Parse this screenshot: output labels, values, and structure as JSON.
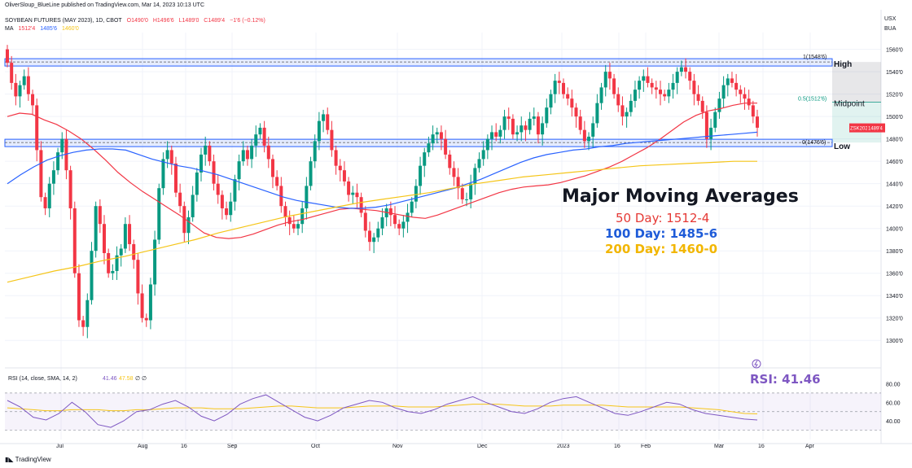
{
  "header": {
    "publisher": "OliverSloup_BlueLine published on TradingView.com, Mar 14, 2023 10:13 UTC",
    "symbol": "SOYBEAN FUTURES (MAY 2023), 1D, CBOT",
    "ohlc": {
      "o": "O1490'0",
      "h": "H1496'6",
      "l": "L1489'0",
      "c": "C1489'4",
      "chg": "−1'6 (−0.12%)"
    },
    "ma_label": "MA",
    "ma_values": [
      "1512'4",
      "1485'6",
      "1460'0"
    ]
  },
  "currency": [
    "USX",
    "BUA"
  ],
  "colors": {
    "up": "#089981",
    "down": "#f23645",
    "ma50": "#f23645",
    "ma100": "#2962ff",
    "ma200": "#f5c518",
    "rsi": "#7e57c2",
    "band": "#2962ff"
  },
  "annotations": {
    "high": "High",
    "midpoint": "Midpoint",
    "low": "Low",
    "fib_high": "1(1548'6)",
    "fib_mid": "0.5(1512'6)",
    "fib_low": "0(1476'6)",
    "last_tag": "ZSK2023",
    "last_price": "1489'4"
  },
  "overlay": {
    "title": "Major Moving Averages",
    "lines": [
      {
        "text": "50 Day: 1512-4",
        "color": "#e53935"
      },
      {
        "text": "100 Day: 1485-6",
        "color": "#1e5bd8"
      },
      {
        "text": "200 Day: 1460-0",
        "color": "#f2b600"
      }
    ],
    "rsi_text": "RSI: 41.46"
  },
  "rsi_header": {
    "label": "RSI (14, close, SMA, 14, 2)",
    "v1": "41.46",
    "v2": "47.58",
    "v3": "∅",
    "v4": "∅"
  },
  "footer": "TradingView",
  "chart_data": {
    "type": "candlestick",
    "symbol": "ZSK2023",
    "price_axis": {
      "ticks": [
        "1560'0",
        "1540'0",
        "1520'0",
        "1500'0",
        "1480'0",
        "1460'0",
        "1440'0",
        "1420'0",
        "1400'0",
        "1380'0",
        "1360'0",
        "1340'0",
        "1320'0",
        "1300'0"
      ],
      "min": 1290,
      "max": 1575
    },
    "time_axis": {
      "ticks": [
        "Jul",
        "Aug",
        "16",
        "Sep",
        "Oct",
        "Nov",
        "Dec",
        "2023",
        "16",
        "Feb",
        "Mar",
        "16",
        "Apr"
      ]
    },
    "levels": {
      "high": 1548.75,
      "midpoint": 1512.75,
      "low": 1476.75
    },
    "ma_last": {
      "ma50": 1512.5,
      "ma100": 1485.75,
      "ma200": 1460.0
    },
    "closes": [
      1548,
      1530,
      1518,
      1528,
      1536,
      1520,
      1510,
      1470,
      1428,
      1418,
      1440,
      1452,
      1468,
      1480,
      1452,
      1418,
      1360,
      1318,
      1312,
      1336,
      1380,
      1420,
      1404,
      1378,
      1360,
      1362,
      1376,
      1382,
      1404,
      1386,
      1372,
      1342,
      1320,
      1318,
      1350,
      1390,
      1436,
      1462,
      1470,
      1458,
      1432,
      1420,
      1396,
      1410,
      1430,
      1450,
      1466,
      1474,
      1460,
      1440,
      1430,
      1418,
      1412,
      1424,
      1444,
      1460,
      1470,
      1462,
      1474,
      1484,
      1490,
      1474,
      1462,
      1446,
      1438,
      1420,
      1410,
      1404,
      1400,
      1404,
      1418,
      1438,
      1460,
      1478,
      1496,
      1502,
      1488,
      1470,
      1456,
      1452,
      1442,
      1430,
      1432,
      1428,
      1414,
      1398,
      1388,
      1392,
      1400,
      1410,
      1418,
      1412,
      1404,
      1400,
      1406,
      1414,
      1424,
      1438,
      1456,
      1468,
      1476,
      1484,
      1486,
      1480,
      1466,
      1454,
      1446,
      1436,
      1426,
      1426,
      1440,
      1454,
      1462,
      1470,
      1480,
      1486,
      1482,
      1488,
      1500,
      1498,
      1484,
      1486,
      1492,
      1488,
      1498,
      1500,
      1484,
      1494,
      1508,
      1520,
      1532,
      1530,
      1520,
      1516,
      1508,
      1500,
      1488,
      1478,
      1482,
      1494,
      1512,
      1526,
      1540,
      1534,
      1520,
      1510,
      1500,
      1504,
      1514,
      1524,
      1532,
      1536,
      1530,
      1526,
      1524,
      1520,
      1518,
      1524,
      1530,
      1540,
      1544,
      1540,
      1532,
      1520,
      1514,
      1504,
      1480,
      1490,
      1504,
      1516,
      1528,
      1534,
      1530,
      1524,
      1520,
      1516,
      1510,
      1500,
      1490
    ],
    "ma50": [
      1500,
      1503,
      1502,
      1497,
      1493,
      1487,
      1480,
      1471,
      1461,
      1450,
      1441,
      1433,
      1426,
      1419,
      1412,
      1404,
      1396,
      1392,
      1391,
      1392,
      1395,
      1399,
      1403,
      1406,
      1408,
      1411,
      1414,
      1417,
      1418,
      1417,
      1416,
      1414,
      1412,
      1410,
      1409,
      1412,
      1416,
      1420,
      1424,
      1428,
      1432,
      1435,
      1437,
      1438,
      1439,
      1441,
      1444,
      1447,
      1451,
      1455,
      1460,
      1466,
      1472,
      1479,
      1487,
      1495,
      1501,
      1505,
      1507,
      1510,
      1512,
      1512
    ],
    "ma100": [
      1440,
      1448,
      1455,
      1461,
      1465,
      1468,
      1470,
      1471,
      1471,
      1470,
      1466,
      1462,
      1459,
      1456,
      1454,
      1451,
      1448,
      1444,
      1440,
      1436,
      1432,
      1428,
      1425,
      1423,
      1421,
      1419,
      1418,
      1418,
      1419,
      1421,
      1424,
      1427,
      1430,
      1433,
      1436,
      1440,
      1444,
      1449,
      1454,
      1459,
      1463,
      1466,
      1468,
      1470,
      1471,
      1473,
      1474,
      1476,
      1477,
      1478,
      1479,
      1480,
      1481,
      1482,
      1483,
      1484,
      1485,
      1486
    ],
    "ma200": [
      1352,
      1357,
      1362,
      1366,
      1371,
      1375,
      1380,
      1385,
      1390,
      1396,
      1401,
      1406,
      1411,
      1415,
      1419,
      1423,
      1426,
      1429,
      1432,
      1436,
      1440,
      1443,
      1446,
      1448,
      1450,
      1452,
      1454,
      1456,
      1457,
      1458,
      1459,
      1460,
      1460
    ],
    "rsi": {
      "values": [
        62,
        55,
        44,
        41,
        48,
        60,
        50,
        36,
        33,
        40,
        50,
        52,
        58,
        62,
        55,
        45,
        40,
        47,
        58,
        64,
        68,
        60,
        52,
        44,
        40,
        46,
        54,
        58,
        62,
        60,
        54,
        50,
        48,
        52,
        58,
        62,
        66,
        60,
        55,
        50,
        48,
        53,
        60,
        64,
        66,
        60,
        54,
        48,
        46,
        50,
        55,
        60,
        58,
        52,
        48,
        46,
        44,
        42,
        41
      ],
      "sma": [
        54,
        53,
        52,
        51,
        51,
        52,
        52,
        52,
        51,
        51,
        52,
        52,
        53,
        54,
        54,
        54,
        53,
        53,
        53,
        54,
        55,
        56,
        56,
        55,
        54,
        54,
        54,
        55,
        56,
        56,
        56,
        55,
        55,
        55,
        56,
        57,
        58,
        58,
        58,
        57,
        56,
        56,
        56,
        57,
        57,
        57,
        57,
        56,
        55,
        55,
        55,
        55,
        55,
        54,
        53,
        52,
        50,
        48,
        47.58
      ],
      "levels": [
        70,
        50,
        30
      ],
      "axis": [
        "80.00",
        "60.00",
        "40.00"
      ]
    }
  }
}
